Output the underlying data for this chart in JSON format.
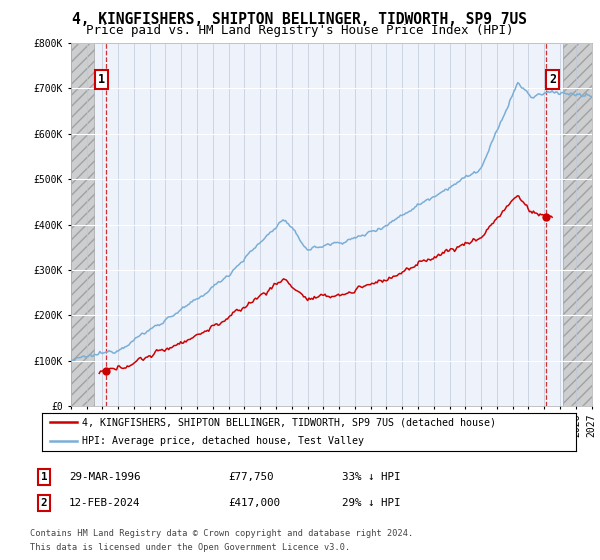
{
  "title": "4, KINGFISHERS, SHIPTON BELLINGER, TIDWORTH, SP9 7US",
  "subtitle": "Price paid vs. HM Land Registry's House Price Index (HPI)",
  "ylim": [
    0,
    800000
  ],
  "yticks": [
    0,
    100000,
    200000,
    300000,
    400000,
    500000,
    600000,
    700000,
    800000
  ],
  "ytick_labels": [
    "£0",
    "£100K",
    "£200K",
    "£300K",
    "£400K",
    "£500K",
    "£600K",
    "£700K",
    "£800K"
  ],
  "point1_year": 1996.23,
  "point1_value": 77750,
  "point1_label": "1",
  "point2_year": 2024.12,
  "point2_value": 417000,
  "point2_label": "2",
  "hpi_color": "#7aaed6",
  "price_color": "#cc0000",
  "plot_bg_color": "#eef2fb",
  "hatch_color": "#c8c8c8",
  "legend_line1": "4, KINGFISHERS, SHIPTON BELLINGER, TIDWORTH, SP9 7US (detached house)",
  "legend_line2": "HPI: Average price, detached house, Test Valley",
  "table_row1": [
    "1",
    "29-MAR-1996",
    "£77,750",
    "33% ↓ HPI"
  ],
  "table_row2": [
    "2",
    "12-FEB-2024",
    "£417,000",
    "29% ↓ HPI"
  ],
  "footer1": "Contains HM Land Registry data © Crown copyright and database right 2024.",
  "footer2": "This data is licensed under the Open Government Licence v3.0.",
  "title_fontsize": 10.5,
  "subtitle_fontsize": 9,
  "xmin": 1994,
  "xmax": 2027,
  "hatch_left_end": 1995.5,
  "hatch_right_start": 2025.2
}
